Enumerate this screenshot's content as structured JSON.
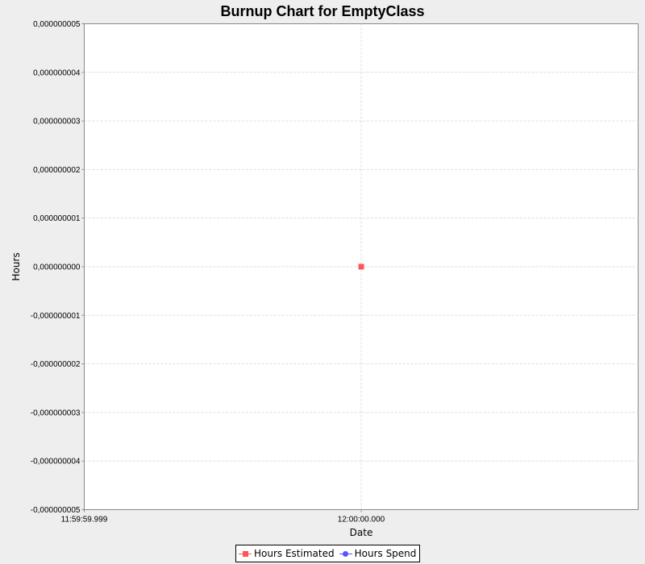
{
  "chart_data": {
    "type": "line",
    "title": "Burnup Chart for EmptyClass",
    "xlabel": "Date",
    "ylabel": "Hours",
    "x_tick_labels": [
      "11:59:59.999",
      "12:00:00.000"
    ],
    "y_tick_labels": [
      "0,000000005",
      "0,000000004",
      "0,000000003",
      "0,000000002",
      "0,000000001",
      "0,000000000",
      "-0,000000001",
      "-0,000000002",
      "-0,000000003",
      "-0,000000004",
      "-0,000000005"
    ],
    "y_ticks": [
      5e-09,
      4e-09,
      3e-09,
      2e-09,
      1e-09,
      0,
      -1e-09,
      -2e-09,
      -3e-09,
      -4e-09,
      -5e-09
    ],
    "ylim": [
      -5e-09,
      5e-09
    ],
    "x_ticks": [
      "11:59:59.999",
      "12:00:00.000"
    ],
    "xlim": [
      "11:59:59.999",
      "12:00:00.001"
    ],
    "grid": true,
    "legend_position": "bottom",
    "series": [
      {
        "name": "Hours Estimated",
        "color": "#ff5555",
        "marker": "square",
        "points": [
          {
            "x": "12:00:00.000",
            "y": 0
          }
        ]
      },
      {
        "name": "Hours Spend",
        "color": "#5555ff",
        "marker": "circle",
        "points": []
      }
    ]
  },
  "colors": {
    "background": "#eeeeee",
    "plot_background": "#ffffff",
    "grid": "#dddddd",
    "axis": "#888888"
  }
}
